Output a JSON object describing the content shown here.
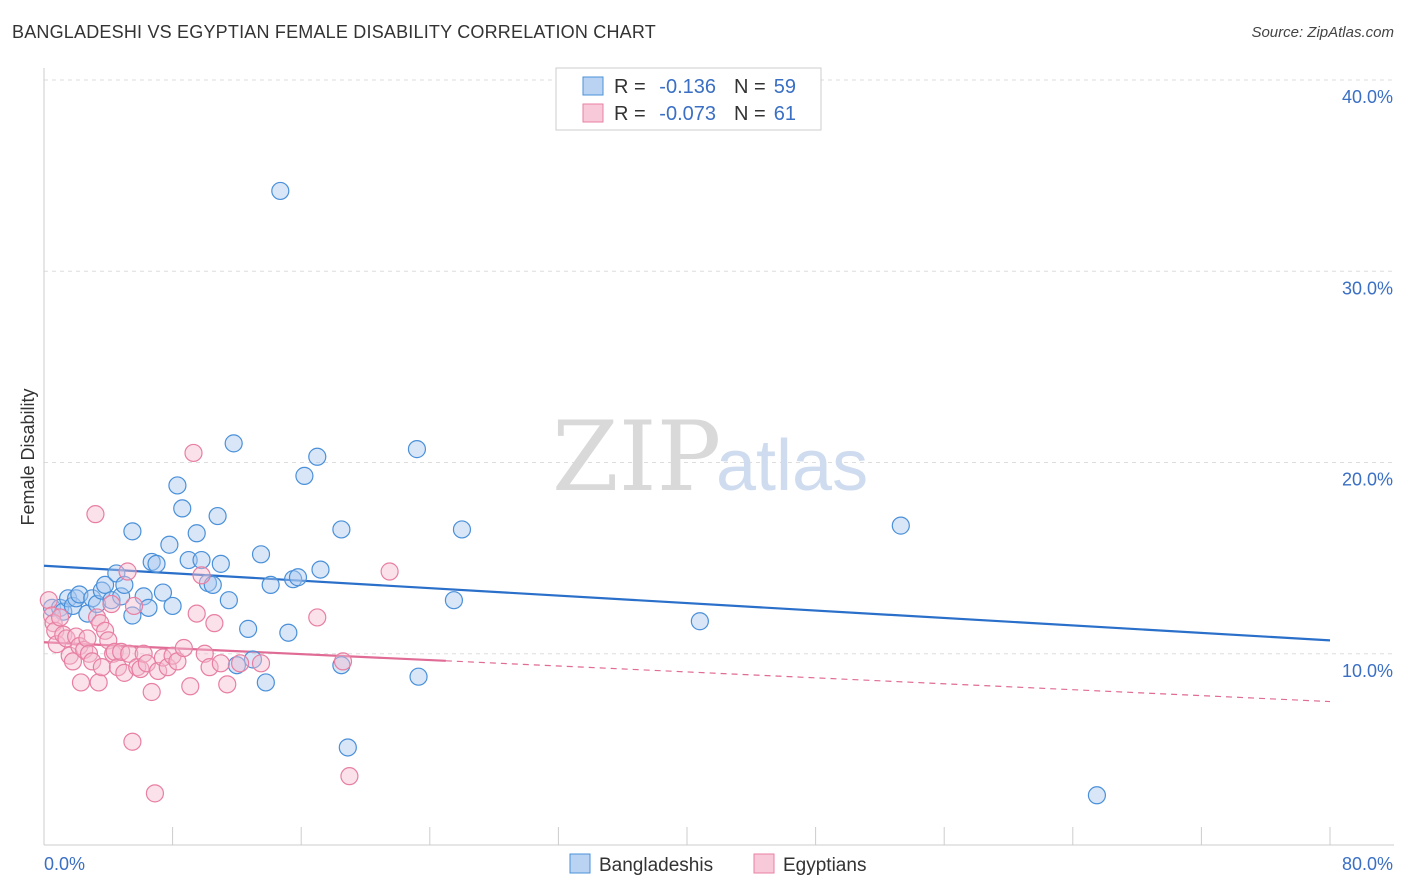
{
  "title": "BANGLADESHI VS EGYPTIAN FEMALE DISABILITY CORRELATION CHART",
  "source": "Source: ZipAtlas.com",
  "watermark": {
    "zip": "ZIP",
    "atlas": "atlas"
  },
  "colors": {
    "blue": "#4a90d9",
    "blue_fill": "#a9c8ef",
    "blue_line": "#2a6fc9",
    "pink": "#e87fa2",
    "pink_fill": "#f5bcd0",
    "pink_line": "#e06b95",
    "axis_label": "#3a6fc4",
    "grid": "#dddddd"
  },
  "legend": {
    "rows": [
      {
        "r_label": "R =",
        "r_value": "-0.136",
        "n_label": "N =",
        "n_value": "59",
        "series": "blue"
      },
      {
        "r_label": "R =",
        "r_value": "-0.073",
        "n_label": "N =",
        "n_value": "61",
        "series": "pink"
      }
    ]
  },
  "chart_data": {
    "type": "scatter",
    "title": "BANGLADESHI VS EGYPTIAN FEMALE DISABILITY CORRELATION CHART",
    "xlabel": "",
    "ylabel": "Female Disability",
    "xlim": [
      0,
      80
    ],
    "ylim": [
      0,
      40
    ],
    "x_tick_labels": [
      "0.0%",
      "80.0%"
    ],
    "y_ticks": [
      10,
      20,
      30,
      40
    ],
    "y_tick_labels": [
      "10.0%",
      "20.0%",
      "30.0%",
      "40.0%"
    ],
    "grid": true,
    "legend_position": "top-center",
    "series": [
      {
        "name": "Bangladeshis",
        "color": "#4a90d9",
        "trend": {
          "x": [
            0,
            80
          ],
          "y": [
            14.6,
            10.7
          ],
          "dashed_from": null
        },
        "points": [
          [
            0.5,
            12.4
          ],
          [
            1.0,
            12.4
          ],
          [
            1.2,
            12.2
          ],
          [
            1.5,
            12.9
          ],
          [
            1.8,
            12.5
          ],
          [
            2.0,
            12.9
          ],
          [
            2.2,
            13.1
          ],
          [
            2.7,
            12.1
          ],
          [
            3.0,
            12.9
          ],
          [
            3.3,
            12.6
          ],
          [
            3.6,
            13.3
          ],
          [
            3.8,
            13.6
          ],
          [
            4.2,
            12.8
          ],
          [
            4.5,
            14.2
          ],
          [
            4.8,
            13.0
          ],
          [
            5.0,
            13.6
          ],
          [
            5.5,
            12.0
          ],
          [
            5.5,
            16.4
          ],
          [
            6.2,
            13.0
          ],
          [
            6.5,
            12.4
          ],
          [
            6.7,
            14.8
          ],
          [
            7.0,
            14.7
          ],
          [
            7.4,
            13.2
          ],
          [
            7.8,
            15.7
          ],
          [
            8.0,
            12.5
          ],
          [
            8.3,
            18.8
          ],
          [
            8.6,
            17.6
          ],
          [
            9.0,
            14.9
          ],
          [
            9.5,
            16.3
          ],
          [
            9.8,
            14.9
          ],
          [
            10.2,
            13.7
          ],
          [
            10.5,
            13.6
          ],
          [
            10.8,
            17.2
          ],
          [
            11.0,
            14.7
          ],
          [
            11.5,
            12.8
          ],
          [
            11.8,
            21.0
          ],
          [
            12.0,
            9.4
          ],
          [
            12.7,
            11.3
          ],
          [
            13.0,
            9.7
          ],
          [
            13.5,
            15.2
          ],
          [
            13.8,
            8.5
          ],
          [
            14.1,
            13.6
          ],
          [
            14.7,
            34.2
          ],
          [
            15.2,
            11.1
          ],
          [
            15.5,
            13.9
          ],
          [
            15.8,
            14.0
          ],
          [
            16.2,
            19.3
          ],
          [
            17.0,
            20.3
          ],
          [
            17.2,
            14.4
          ],
          [
            18.5,
            16.5
          ],
          [
            18.5,
            9.4
          ],
          [
            18.9,
            5.1
          ],
          [
            23.2,
            20.7
          ],
          [
            23.3,
            8.8
          ],
          [
            25.5,
            12.8
          ],
          [
            26.0,
            16.5
          ],
          [
            40.8,
            11.7
          ],
          [
            53.3,
            16.7
          ],
          [
            65.5,
            2.6
          ]
        ]
      },
      {
        "name": "Egyptians",
        "color": "#e87fa2",
        "trend": {
          "x": [
            0,
            80
          ],
          "y": [
            10.6,
            7.5
          ],
          "dashed_from": 25
        },
        "points": [
          [
            0.3,
            12.8
          ],
          [
            0.5,
            12.0
          ],
          [
            0.6,
            11.6
          ],
          [
            0.7,
            11.2
          ],
          [
            0.8,
            10.5
          ],
          [
            1.0,
            11.9
          ],
          [
            1.2,
            11.0
          ],
          [
            1.4,
            10.8
          ],
          [
            1.6,
            9.9
          ],
          [
            1.8,
            9.6
          ],
          [
            2.0,
            10.9
          ],
          [
            2.2,
            10.4
          ],
          [
            2.3,
            8.5
          ],
          [
            2.5,
            10.2
          ],
          [
            2.7,
            10.8
          ],
          [
            2.8,
            10.0
          ],
          [
            3.0,
            9.6
          ],
          [
            3.2,
            17.3
          ],
          [
            3.3,
            11.9
          ],
          [
            3.4,
            8.5
          ],
          [
            3.5,
            11.6
          ],
          [
            3.6,
            9.3
          ],
          [
            3.8,
            11.2
          ],
          [
            4.0,
            10.7
          ],
          [
            4.2,
            12.6
          ],
          [
            4.3,
            10.0
          ],
          [
            4.4,
            10.1
          ],
          [
            4.6,
            9.3
          ],
          [
            4.8,
            10.1
          ],
          [
            5.0,
            9.0
          ],
          [
            5.2,
            14.3
          ],
          [
            5.3,
            10.0
          ],
          [
            5.5,
            5.4
          ],
          [
            5.6,
            12.5
          ],
          [
            5.8,
            9.3
          ],
          [
            6.0,
            9.2
          ],
          [
            6.2,
            10.0
          ],
          [
            6.4,
            9.5
          ],
          [
            6.7,
            8.0
          ],
          [
            6.9,
            2.7
          ],
          [
            7.1,
            9.1
          ],
          [
            7.4,
            9.8
          ],
          [
            7.7,
            9.3
          ],
          [
            8.0,
            9.9
          ],
          [
            8.3,
            9.6
          ],
          [
            8.7,
            10.3
          ],
          [
            9.1,
            8.3
          ],
          [
            9.3,
            20.5
          ],
          [
            9.5,
            12.1
          ],
          [
            9.8,
            14.1
          ],
          [
            10.0,
            10.0
          ],
          [
            10.3,
            9.3
          ],
          [
            10.6,
            11.6
          ],
          [
            11.0,
            9.5
          ],
          [
            11.4,
            8.4
          ],
          [
            12.2,
            9.5
          ],
          [
            13.5,
            9.5
          ],
          [
            17.0,
            11.9
          ],
          [
            18.6,
            9.6
          ],
          [
            19.0,
            3.6
          ],
          [
            21.5,
            14.3
          ]
        ]
      }
    ]
  },
  "bottom_legend": [
    {
      "label": "Bangladeshis",
      "series": "blue"
    },
    {
      "label": "Egyptians",
      "series": "pink"
    }
  ]
}
